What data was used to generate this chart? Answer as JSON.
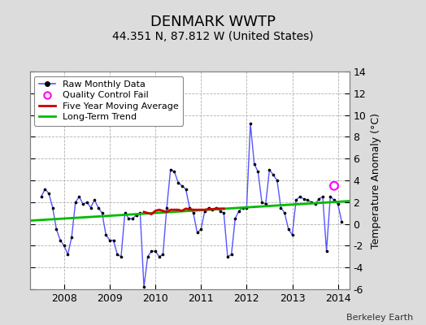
{
  "title": "DENMARK WWTP",
  "subtitle": "44.351 N, 87.812 W (United States)",
  "ylabel": "Temperature Anomaly (°C)",
  "watermark": "Berkeley Earth",
  "ylim": [
    -6,
    14
  ],
  "yticks": [
    -6,
    -4,
    -2,
    0,
    2,
    4,
    6,
    8,
    10,
    12,
    14
  ],
  "xlim": [
    2007.25,
    2014.25
  ],
  "xticks": [
    2008,
    2009,
    2010,
    2011,
    2012,
    2013,
    2014
  ],
  "bg_color": "#dcdcdc",
  "plot_bg_color": "#ffffff",
  "grid_color": "#b0b0b0",
  "raw_color": "#5555ff",
  "raw_marker_color": "#000000",
  "moving_avg_color": "#cc0000",
  "trend_color": "#00bb00",
  "qc_fail_color": "#ff00ff",
  "raw_x": [
    2007.5,
    2007.583,
    2007.667,
    2007.75,
    2007.833,
    2007.917,
    2008.0,
    2008.083,
    2008.167,
    2008.25,
    2008.333,
    2008.417,
    2008.5,
    2008.583,
    2008.667,
    2008.75,
    2008.833,
    2008.917,
    2009.0,
    2009.083,
    2009.167,
    2009.25,
    2009.333,
    2009.417,
    2009.5,
    2009.583,
    2009.667,
    2009.75,
    2009.833,
    2009.917,
    2010.0,
    2010.083,
    2010.167,
    2010.25,
    2010.333,
    2010.417,
    2010.5,
    2010.583,
    2010.667,
    2010.75,
    2010.833,
    2010.917,
    2011.0,
    2011.083,
    2011.167,
    2011.25,
    2011.333,
    2011.417,
    2011.5,
    2011.583,
    2011.667,
    2011.75,
    2011.833,
    2011.917,
    2012.0,
    2012.083,
    2012.167,
    2012.25,
    2012.333,
    2012.417,
    2012.5,
    2012.583,
    2012.667,
    2012.75,
    2012.833,
    2012.917,
    2013.0,
    2013.083,
    2013.167,
    2013.25,
    2013.333,
    2013.417,
    2013.5,
    2013.583,
    2013.667,
    2013.75,
    2013.833,
    2013.917,
    2014.0,
    2014.083
  ],
  "raw_y": [
    2.5,
    3.2,
    2.8,
    1.5,
    -0.5,
    -1.5,
    -2.0,
    -2.8,
    -1.2,
    2.0,
    2.5,
    1.8,
    2.0,
    1.5,
    2.2,
    1.5,
    1.0,
    -1.0,
    -1.5,
    -1.5,
    -2.8,
    -3.0,
    1.0,
    0.5,
    0.5,
    0.8,
    1.0,
    -5.8,
    -3.0,
    -2.5,
    -2.5,
    -3.0,
    -2.8,
    1.5,
    5.0,
    4.8,
    3.8,
    3.5,
    3.2,
    1.5,
    1.0,
    -0.8,
    -0.5,
    1.2,
    1.5,
    1.3,
    1.5,
    1.2,
    1.0,
    -3.0,
    -2.8,
    0.5,
    1.2,
    1.5,
    1.5,
    9.2,
    5.5,
    4.8,
    2.0,
    1.8,
    5.0,
    4.5,
    4.0,
    1.5,
    1.0,
    -0.5,
    -1.0,
    2.2,
    2.5,
    2.3,
    2.2,
    2.0,
    1.8,
    2.3,
    2.5,
    -2.5,
    2.5,
    2.2,
    1.8,
    0.2
  ],
  "moving_avg_x": [
    2009.75,
    2009.833,
    2009.917,
    2010.0,
    2010.083,
    2010.167,
    2010.25,
    2010.333,
    2010.417,
    2010.5,
    2010.583,
    2010.667,
    2010.75,
    2010.833,
    2010.917,
    2011.0,
    2011.083,
    2011.167,
    2011.25,
    2011.333,
    2011.417,
    2011.5
  ],
  "moving_avg_y": [
    1.1,
    1.0,
    0.9,
    1.2,
    1.3,
    1.2,
    1.1,
    1.3,
    1.3,
    1.3,
    1.2,
    1.4,
    1.35,
    1.3,
    1.3,
    1.3,
    1.3,
    1.35,
    1.35,
    1.4,
    1.4,
    1.4
  ],
  "trend_x": [
    2007.25,
    2014.25
  ],
  "trend_y": [
    0.3,
    2.1
  ],
  "qc_fail_x": [
    2013.917
  ],
  "qc_fail_y": [
    3.5
  ],
  "title_fontsize": 13,
  "subtitle_fontsize": 10,
  "tick_fontsize": 9,
  "ylabel_fontsize": 9,
  "legend_fontsize": 8,
  "watermark_fontsize": 8
}
